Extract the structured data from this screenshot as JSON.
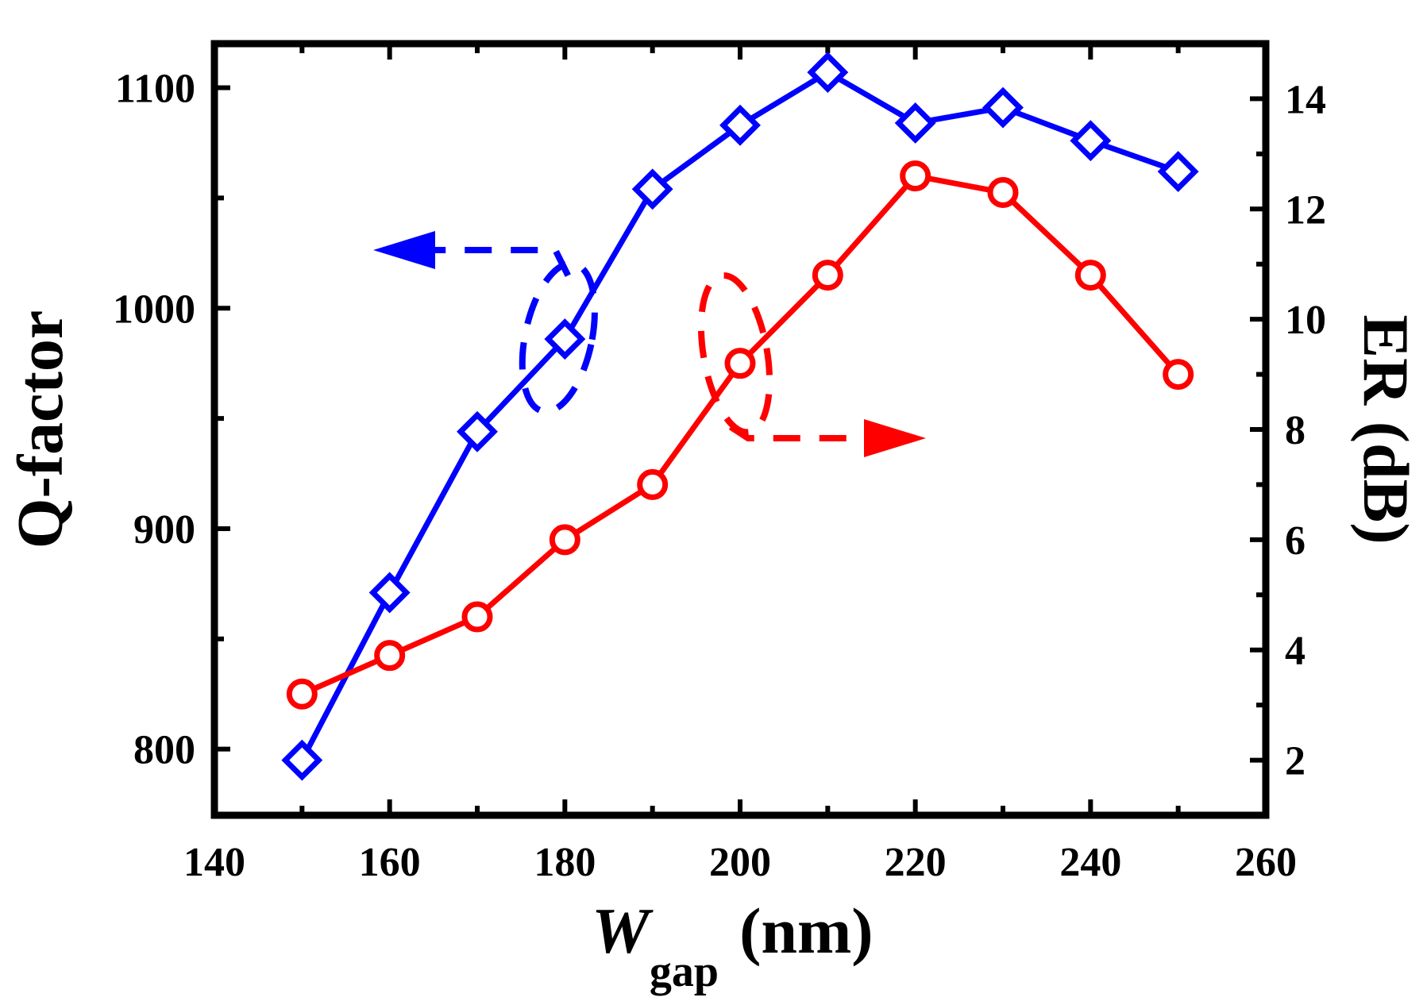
{
  "chart_data": {
    "type": "line",
    "title": "",
    "x": [
      150,
      160,
      170,
      180,
      190,
      200,
      210,
      220,
      230,
      240,
      250
    ],
    "xlabel": {
      "main": "W",
      "subscript": "gap",
      "unit": "(nm)"
    },
    "xlim": [
      140,
      260
    ],
    "xticks": [
      140,
      160,
      180,
      200,
      220,
      240,
      260
    ],
    "ylabel": "Q-factor",
    "ylim": [
      770,
      1120
    ],
    "yticks": [
      800,
      900,
      1000,
      1100
    ],
    "y2label": "ER (dB)",
    "y2lim": [
      1,
      15
    ],
    "y2ticks": [
      2,
      4,
      6,
      8,
      10,
      12,
      14
    ],
    "series": [
      {
        "name": "Q-factor",
        "axis": "left",
        "color": "#0000ff",
        "marker": "diamond",
        "values": [
          795,
          871,
          944,
          986,
          1054,
          1083,
          1107,
          1084,
          1091,
          1076,
          1062
        ]
      },
      {
        "name": "ER",
        "axis": "right",
        "color": "#ff0000",
        "marker": "circle",
        "values": [
          3.2,
          3.9,
          4.6,
          6.0,
          7.0,
          9.2,
          10.8,
          12.6,
          12.3,
          10.8,
          9.0
        ]
      }
    ],
    "annotations": [
      {
        "type": "dashed-arrow",
        "points_to": "left axis",
        "series": "Q-factor",
        "color": "#0000ff"
      },
      {
        "type": "dashed-arrow",
        "points_to": "right axis",
        "series": "ER",
        "color": "#ff0000"
      }
    ]
  }
}
